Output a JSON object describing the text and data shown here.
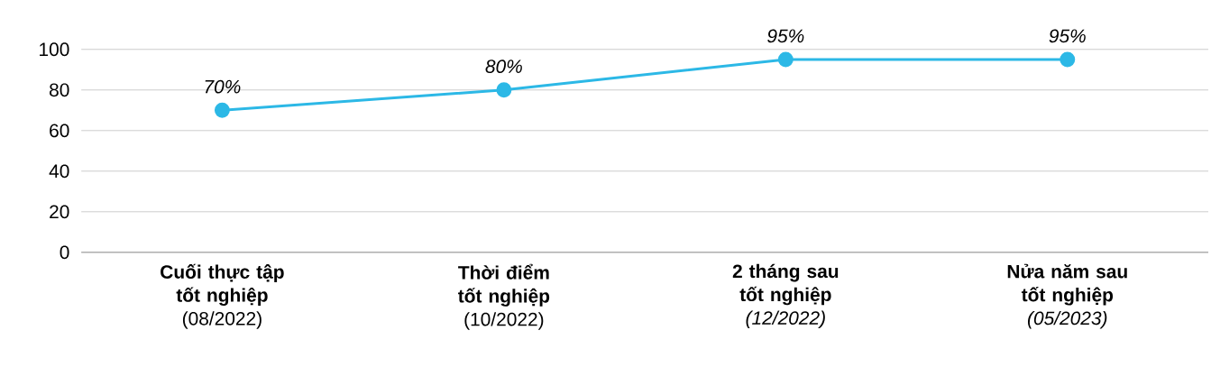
{
  "chart_data": {
    "type": "line",
    "categories": [
      "**Cuối thực tập tốt nghiệp** (08/2022)",
      "**Thời điểm tốt nghiệp** (10/2022)",
      "**2 tháng sau tốt nghiệp** *(12/2022)*",
      "**Nửa năm sau tốt nghiệp** *(05/2023)*"
    ],
    "values": [
      70,
      80,
      95,
      95
    ],
    "value_labels": [
      "*70%*",
      "*80%*",
      "*95%*",
      "*95%*"
    ],
    "color": "#2cb8e6",
    "marker": "circle",
    "line_style": "solid",
    "ylim": [
      0,
      100
    ],
    "yticks": [
      0,
      20,
      40,
      60,
      80,
      100
    ],
    "grid": "y"
  }
}
